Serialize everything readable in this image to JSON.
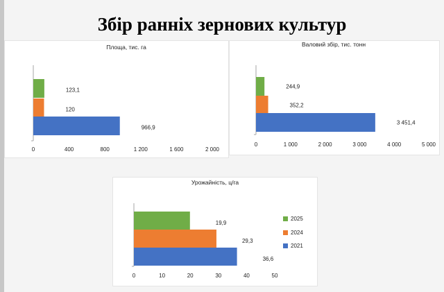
{
  "page": {
    "title": "Збір ранніх зернових культур"
  },
  "chart_data": [
    {
      "type": "bar",
      "orientation": "horizontal",
      "title": "Площа, тис. га",
      "categories": [
        "2025",
        "2024",
        "2021"
      ],
      "series": [
        {
          "values": [
            123.1,
            120,
            966.9
          ],
          "labels": [
            "123,1",
            "120",
            "966,9"
          ]
        }
      ],
      "colors": [
        "#70ad47",
        "#ed7d31",
        "#4472c4"
      ],
      "xlim": [
        0,
        2000
      ],
      "xticks": [
        "0",
        "400",
        "800",
        "1 200",
        "1 600",
        "2 000"
      ],
      "grid": false,
      "legend": "none"
    },
    {
      "type": "bar",
      "orientation": "horizontal",
      "title": "Валовий збір, тис. тонн",
      "categories": [
        "2025",
        "2024",
        "2021"
      ],
      "series": [
        {
          "values": [
            244.9,
            352.2,
            3451.4
          ],
          "labels": [
            "244,9",
            "352,2",
            "3 451,4"
          ]
        }
      ],
      "colors": [
        "#70ad47",
        "#ed7d31",
        "#4472c4"
      ],
      "xlim": [
        0,
        5000
      ],
      "xticks": [
        "0",
        "1 000",
        "2 000",
        "3 000",
        "4 000",
        "5 000"
      ],
      "grid": false,
      "legend": "none"
    },
    {
      "type": "bar",
      "orientation": "horizontal",
      "title": "Урожайність, ц/га",
      "categories": [
        "2025",
        "2024",
        "2021"
      ],
      "series": [
        {
          "values": [
            19.9,
            29.3,
            36.6
          ],
          "labels": [
            "19,9",
            "29,3",
            "36,6"
          ]
        }
      ],
      "colors": [
        "#70ad47",
        "#ed7d31",
        "#4472c4"
      ],
      "xlim": [
        0,
        50
      ],
      "xticks": [
        "0",
        "10",
        "20",
        "30",
        "40",
        "50"
      ],
      "grid": false,
      "legend": "right",
      "legend_items": [
        {
          "label": "2025",
          "color": "#70ad47"
        },
        {
          "label": "2024",
          "color": "#ed7d31"
        },
        {
          "label": "2021",
          "color": "#4472c4"
        }
      ]
    }
  ]
}
